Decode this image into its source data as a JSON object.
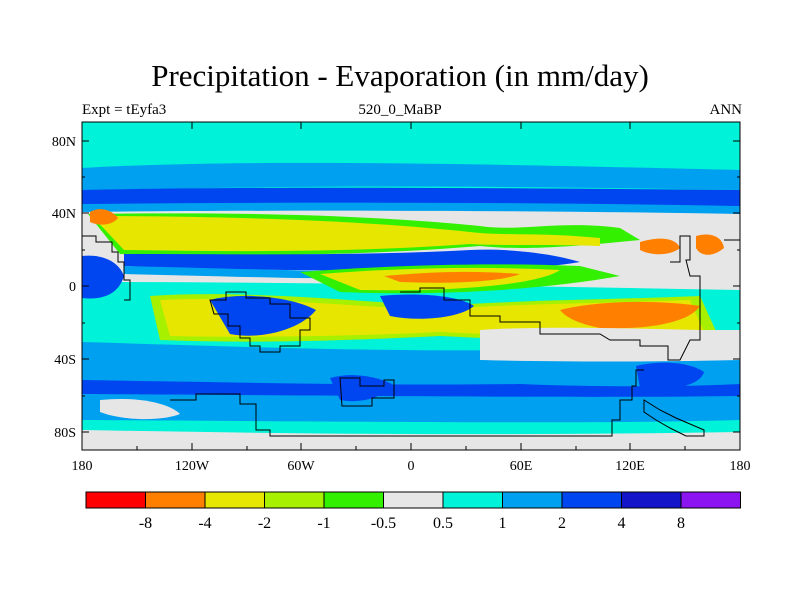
{
  "title": "Precipitation - Evaporation (in mm/day)",
  "subtitle_left": "Expt = tEyfa3",
  "subtitle_center": "520_0_MaBP",
  "subtitle_right": "ANN",
  "axes": {
    "x_ticks": [
      "180",
      "120W",
      "60W",
      "0",
      "60E",
      "120E",
      "180"
    ],
    "y_ticks": [
      "80N",
      "40N",
      "0",
      "40S",
      "80S"
    ]
  },
  "colorbar": {
    "labels": [
      "-8",
      "-4",
      "-2",
      "-1",
      "-0.5",
      "0.5",
      "1",
      "2",
      "4",
      "8"
    ],
    "colors": [
      "#ff0000",
      "#ff8000",
      "#e6e600",
      "#a6f000",
      "#33f000",
      "#e6e6e6",
      "#00f2d8",
      "#00a0f0",
      "#0046f0",
      "#1414c8",
      "#8c14f0"
    ]
  },
  "map": {
    "projection": "cylindrical equidistant",
    "lon_range": [
      -180,
      180
    ],
    "lat_range": [
      -90,
      90
    ],
    "field_colors": {
      "background": "#00f2d8",
      "light_blue": "#00a0f0",
      "blue": "#0046f0",
      "dark_blue": "#1414c8",
      "grey": "#e6e6e6",
      "green": "#33f000",
      "lime": "#a6f000",
      "yellow": "#e6e600",
      "orange": "#ff8000"
    }
  }
}
